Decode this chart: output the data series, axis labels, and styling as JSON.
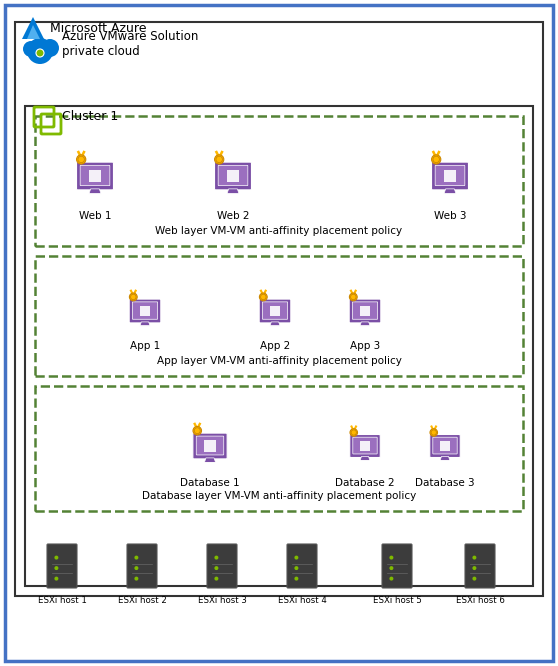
{
  "title_azure": "Microsoft Azure",
  "title_avs": "Azure VMware Solution\nprivate cloud",
  "title_cluster": "Cluster 1",
  "web_labels": [
    "Web 1",
    "Web 2",
    "Web 3"
  ],
  "web_policy": "Web layer VM-VM anti-affinity placement policy",
  "app_labels": [
    "App 1",
    "App 2",
    "App 3"
  ],
  "app_policy": "App layer VM-VM anti-affinity placement policy",
  "db_labels": [
    "Database 1",
    "Database 2",
    "Database 3"
  ],
  "db_policy": "Database layer VM-VM anti-affinity placement policy",
  "esxi_labels": [
    "ESXi host 1",
    "ESXi host 2",
    "ESXi host 3",
    "ESXi host 4",
    "ESXi host 5",
    "ESXi host 6"
  ],
  "outer_border_color": "#4472C4",
  "inner_border_color": "#333333",
  "cluster_border_color": "#333333",
  "dashed_border_color": "#548235",
  "bg_color": "#FFFFFF",
  "azure_logo_colors": [
    "#0078D4",
    "#50B0F0"
  ],
  "vm_color": "#7B4FA6",
  "vm_screen_color": "#9B6FBF",
  "medal_color": "#FFB800",
  "server_color": "#3C3C3C",
  "server_light_color": "#7FBA00",
  "text_color": "#000000",
  "font_size_label": 7.5,
  "font_size_policy": 7.5,
  "font_size_title": 9
}
